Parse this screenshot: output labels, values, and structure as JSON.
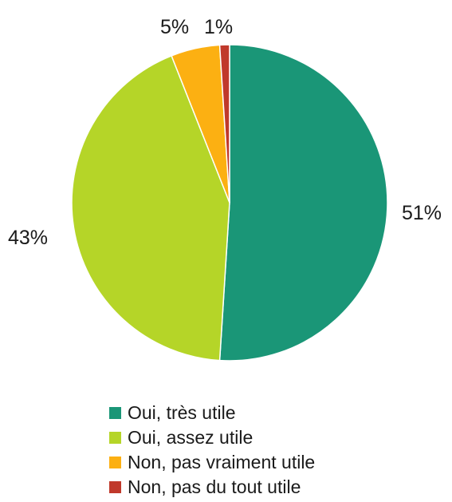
{
  "chart_data": {
    "type": "pie",
    "title": "",
    "start_angle_deg": 0,
    "direction": "clockwise",
    "legend_position": "bottom",
    "slices": [
      {
        "label": "Oui, très utile",
        "value": 51,
        "display": "51%",
        "color": "#1a9677"
      },
      {
        "label": "Oui, assez utile",
        "value": 43,
        "display": "43%",
        "color": "#b5d528"
      },
      {
        "label": "Non, pas vraiment utile",
        "value": 5,
        "display": "5%",
        "color": "#fcb012"
      },
      {
        "label": "Non, pas du tout utile",
        "value": 1,
        "display": "1%",
        "color": "#c0392b"
      }
    ]
  }
}
